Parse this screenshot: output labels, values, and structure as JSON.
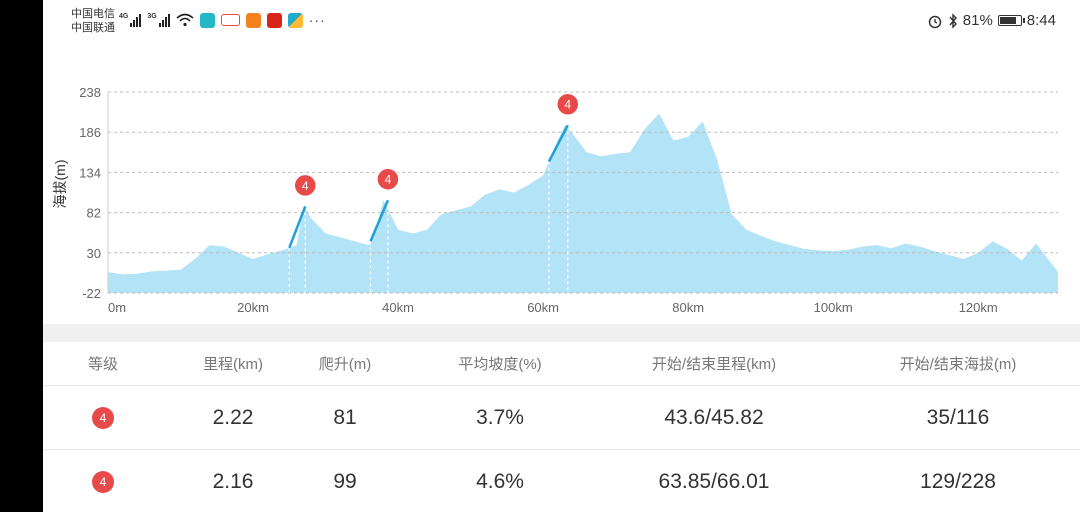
{
  "status_bar": {
    "carrier_1": "中国电信",
    "carrier_2": "中国联通",
    "net_1": "4G",
    "net_2": "3G",
    "battery": "81%",
    "time": "8:44",
    "more": "···"
  },
  "chart_data": {
    "type": "area",
    "ylabel": "海拔(m)",
    "xlabel": "",
    "y_ticks": [
      "238",
      "186",
      "134",
      "82",
      "30",
      "-22"
    ],
    "x_ticks": [
      "0m",
      "20km",
      "40km",
      "60km",
      "80km",
      "100km",
      "120km"
    ],
    "ylim": [
      -22,
      238
    ],
    "xlim": [
      0,
      131
    ],
    "grid": true,
    "fill_color": "#b3e3f6",
    "climb_color": "#1e9fd8",
    "badge_color": "#e84a4a",
    "x": [
      0,
      2,
      4,
      6,
      8,
      10,
      12,
      14,
      16,
      18,
      20,
      22,
      24,
      26,
      27,
      28,
      30,
      32,
      34,
      36,
      37,
      38,
      40,
      42,
      44,
      46,
      48,
      50,
      52,
      54,
      56,
      58,
      60,
      62,
      63,
      64,
      66,
      68,
      70,
      72,
      74,
      76,
      78,
      80,
      82,
      84,
      86,
      88,
      90,
      92,
      94,
      96,
      98,
      100,
      102,
      104,
      106,
      108,
      110,
      112,
      114,
      116,
      118,
      120,
      122,
      124,
      126,
      128,
      131
    ],
    "y": [
      5,
      2,
      3,
      6,
      7,
      8,
      22,
      40,
      38,
      30,
      22,
      28,
      33,
      40,
      90,
      75,
      55,
      50,
      45,
      40,
      65,
      98,
      60,
      55,
      60,
      80,
      85,
      90,
      105,
      112,
      108,
      118,
      130,
      175,
      195,
      185,
      160,
      155,
      158,
      160,
      190,
      210,
      175,
      180,
      200,
      150,
      80,
      60,
      52,
      45,
      40,
      35,
      33,
      32,
      34,
      38,
      40,
      36,
      42,
      38,
      32,
      27,
      22,
      30,
      45,
      35,
      20,
      42,
      5
    ],
    "climbs": [
      {
        "grade": "4",
        "start_km": 25,
        "end_km": 27.2,
        "end_elev": 90
      },
      {
        "grade": "4",
        "start_km": 36.2,
        "end_km": 38.6,
        "end_elev": 98
      },
      {
        "grade": "4",
        "start_km": 60.8,
        "end_km": 63.4,
        "end_elev": 195
      }
    ]
  },
  "table": {
    "headers": [
      "等级",
      "里程(km)",
      "爬升(m)",
      "平均坡度(%)",
      "开始/结束里程(km)",
      "开始/结束海拔(m)"
    ],
    "rows": [
      {
        "grade": "4",
        "distance": "2.22",
        "climb": "81",
        "avg_grade": "3.7%",
        "start_end_km": "43.6/45.82",
        "start_end_elev": "35/116"
      },
      {
        "grade": "4",
        "distance": "2.16",
        "climb": "99",
        "avg_grade": "4.6%",
        "start_end_km": "63.85/66.01",
        "start_end_elev": "129/228"
      }
    ]
  }
}
